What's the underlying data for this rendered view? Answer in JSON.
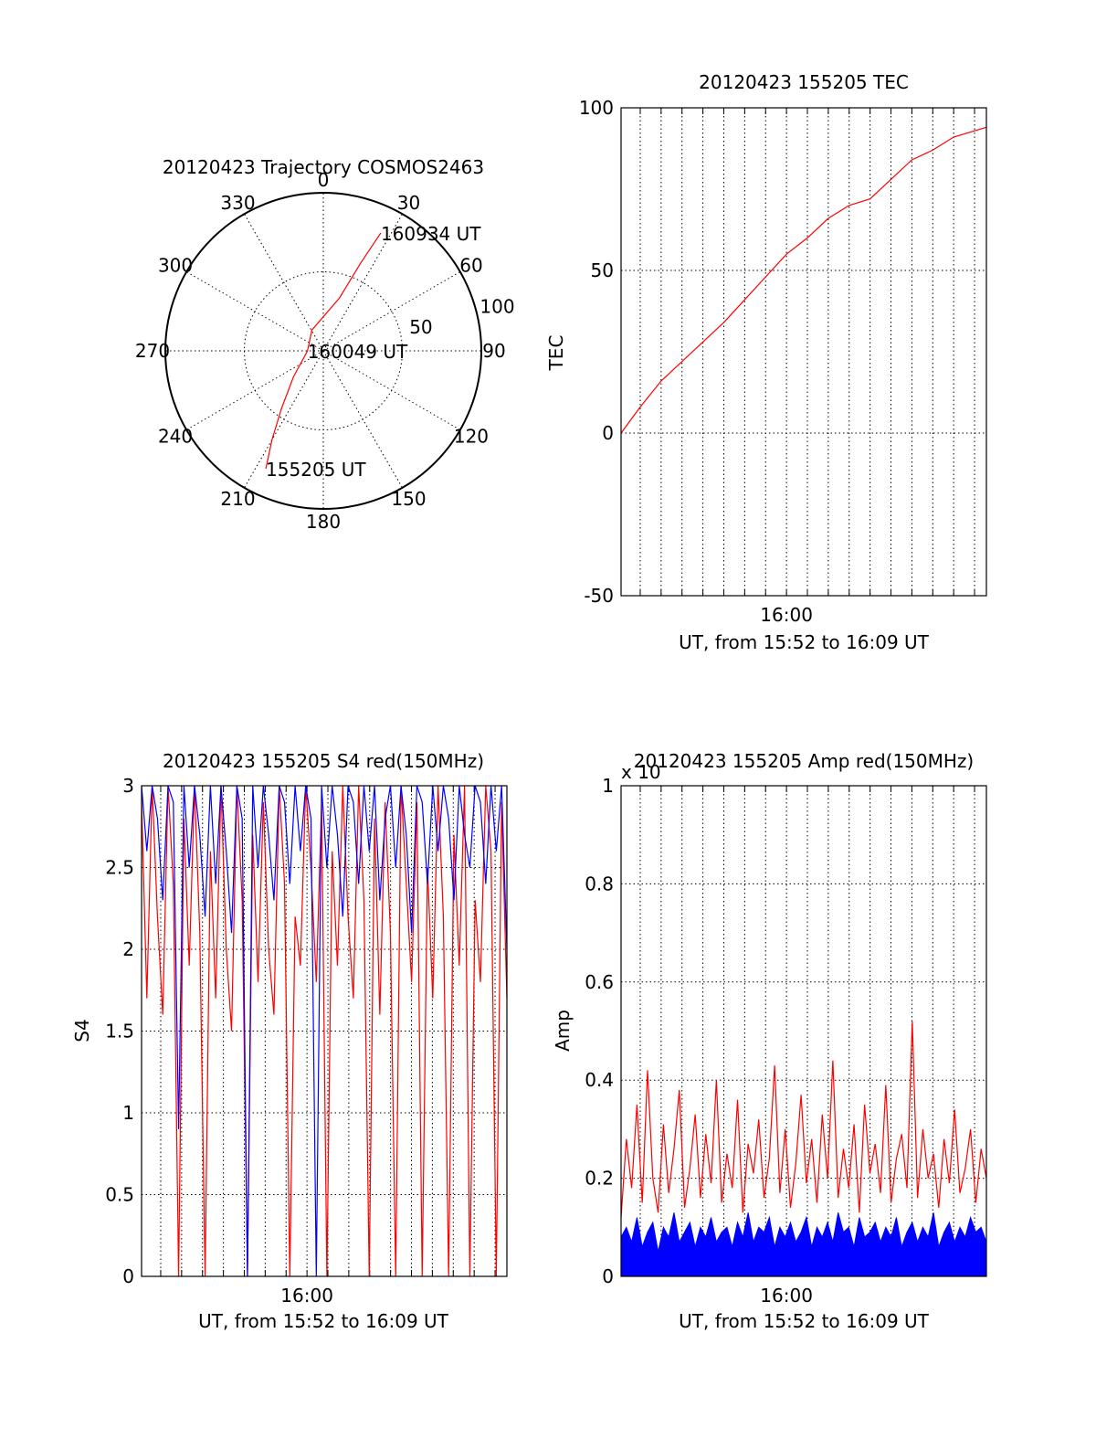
{
  "colors": {
    "red": "#ff0000",
    "blue": "#0000ff",
    "axis": "#000000"
  },
  "chart_data": [
    {
      "id": "trajectory",
      "type": "polar",
      "title": "20120423 Trajectory COSMOS2463",
      "angle_labels": [
        "0",
        "30",
        "60",
        "90",
        "120",
        "150",
        "180",
        "210",
        "240",
        "270",
        "300",
        "330"
      ],
      "radius_labels": [
        "50",
        "100"
      ],
      "radial_range": [
        0,
        100
      ],
      "angle_direction": "clockwise from top",
      "grid": true,
      "series": [
        {
          "color": "red",
          "points": [
            {
              "az": 206,
              "r": 83
            },
            {
              "az": 210,
              "r": 65
            },
            {
              "az": 216,
              "r": 45
            },
            {
              "az": 229,
              "r": 25
            },
            {
              "az": 270,
              "r": 10
            },
            {
              "az": 331,
              "r": 15
            },
            {
              "az": 17,
              "r": 35
            },
            {
              "az": 23,
              "r": 60
            },
            {
              "az": 26,
              "r": 83
            }
          ]
        }
      ],
      "annotations": [
        {
          "text": "160934 UT",
          "az": 26,
          "r": 83
        },
        {
          "text": "160049 UT",
          "az": 270,
          "r": 10
        },
        {
          "text": "155205 UT",
          "az": 206,
          "r": 83
        }
      ]
    },
    {
      "id": "tec",
      "type": "line",
      "title": "20120423 155205 TEC",
      "ylabel": "TEC",
      "xlabel": "UT, from 15:52 to 16:09 UT",
      "x_range": [
        "15:52:05",
        "16:09:34"
      ],
      "xtick_labels": [
        "16:00"
      ],
      "ylim": [
        -50,
        100
      ],
      "ytick_labels": [
        "-50",
        "0",
        "50",
        "100"
      ],
      "grid": true,
      "series": [
        {
          "color": "red",
          "x": [
            "15:52:05",
            "15:53:00",
            "15:54:00",
            "15:55:00",
            "15:56:00",
            "15:57:00",
            "15:58:00",
            "15:59:00",
            "16:00:00",
            "16:01:00",
            "16:02:00",
            "16:03:00",
            "16:04:00",
            "16:05:00",
            "16:06:00",
            "16:07:00",
            "16:08:00",
            "16:09:34"
          ],
          "values": [
            0,
            8,
            16,
            22,
            28,
            34,
            41,
            48,
            55,
            60,
            66,
            70,
            72,
            78,
            84,
            87,
            91,
            94
          ]
        }
      ]
    },
    {
      "id": "s4",
      "type": "line",
      "title": "20120423 155205 S4 red(150MHz)",
      "ylabel": "S4",
      "xlabel": "UT, from 15:52 to 16:09 UT",
      "x_range": [
        "15:52:05",
        "16:09:34"
      ],
      "xtick_labels": [
        "16:00"
      ],
      "ylim": [
        0,
        3
      ],
      "ytick_labels": [
        "0",
        "0.5",
        "1",
        "1.5",
        "2",
        "2.5",
        "3"
      ],
      "grid": true,
      "series": [
        {
          "color": "red",
          "values": [
            2.9,
            1.7,
            3.0,
            2.2,
            1.6,
            3.0,
            2.4,
            0,
            2.8,
            1.9,
            3.0,
            2.1,
            0,
            2.6,
            1.7,
            3.0,
            2.0,
            1.5,
            3.0,
            2.3,
            0,
            2.7,
            1.8,
            2.9,
            2.0,
            1.6,
            3.0,
            2.4,
            0,
            2.2,
            1.9,
            3.0,
            2.5,
            1.8,
            2.9,
            0,
            2.6,
            1.9,
            3.0,
            2.2,
            1.7,
            3.0,
            2.3,
            0,
            2.8,
            1.6,
            2.9,
            2.1,
            0,
            3.0,
            2.4,
            1.8,
            2.9,
            0,
            2.5,
            1.7,
            3.0,
            2.2,
            0,
            2.7,
            1.9,
            3.0,
            0,
            2.3,
            1.8,
            3.0,
            2.6,
            0,
            2.9,
            1.7
          ]
        },
        {
          "color": "blue",
          "values": [
            3.0,
            2.6,
            3.0,
            2.8,
            2.3,
            3.0,
            2.9,
            0.9,
            3.0,
            2.5,
            3.0,
            2.7,
            2.2,
            3.0,
            2.4,
            3.0,
            2.6,
            2.1,
            3.0,
            2.8,
            0,
            3.0,
            2.5,
            3.0,
            2.7,
            2.3,
            3.0,
            2.9,
            2.4,
            3.0,
            2.6,
            3.0,
            2.8,
            0,
            3.0,
            2.5,
            3.0,
            2.7,
            2.2,
            3.0,
            2.9,
            2.4,
            3.0,
            2.6,
            3.0,
            2.3,
            2.8,
            3.0,
            2.5,
            3.0,
            2.7,
            2.1,
            3.0,
            2.9,
            2.4,
            3.0,
            2.6,
            3.0,
            2.8,
            2.3,
            3.0,
            2.7,
            2.5,
            3.0,
            2.9,
            2.4,
            3.0,
            2.6,
            3.0,
            2.0
          ]
        }
      ]
    },
    {
      "id": "amp",
      "type": "line",
      "title": "20120423 155205 Amp red(150MHz)",
      "ylabel": "Amp",
      "xlabel": "UT, from 15:52 to 16:09 UT",
      "x_range": [
        "15:52:05",
        "16:09:34"
      ],
      "xtick_labels": [
        "16:00"
      ],
      "ylim": [
        0,
        1
      ],
      "ytick_labels": [
        "0",
        "0.2",
        "0.4",
        "0.6",
        "0.8",
        "1"
      ],
      "y_multiplier": "x 10",
      "grid": true,
      "series": [
        {
          "color": "red",
          "values": [
            0.12,
            0.28,
            0.18,
            0.35,
            0.15,
            0.42,
            0.2,
            0.13,
            0.31,
            0.17,
            0.26,
            0.38,
            0.14,
            0.22,
            0.33,
            0.16,
            0.29,
            0.19,
            0.4,
            0.15,
            0.25,
            0.18,
            0.36,
            0.13,
            0.27,
            0.21,
            0.32,
            0.16,
            0.24,
            0.43,
            0.17,
            0.3,
            0.14,
            0.23,
            0.37,
            0.19,
            0.28,
            0.15,
            0.33,
            0.2,
            0.44,
            0.16,
            0.26,
            0.18,
            0.31,
            0.13,
            0.35,
            0.21,
            0.27,
            0.17,
            0.39,
            0.15,
            0.24,
            0.29,
            0.18,
            0.52,
            0.16,
            0.3,
            0.2,
            0.25,
            0.14,
            0.28,
            0.19,
            0.34,
            0.17,
            0.22,
            0.3,
            0.15,
            0.26,
            0.2
          ]
        },
        {
          "color": "blue",
          "values": [
            0.08,
            0.1,
            0.07,
            0.12,
            0.06,
            0.09,
            0.11,
            0.05,
            0.1,
            0.08,
            0.13,
            0.07,
            0.09,
            0.11,
            0.06,
            0.1,
            0.08,
            0.12,
            0.07,
            0.09,
            0.1,
            0.06,
            0.11,
            0.08,
            0.13,
            0.07,
            0.1,
            0.09,
            0.12,
            0.06,
            0.1,
            0.08,
            0.11,
            0.07,
            0.09,
            0.12,
            0.06,
            0.1,
            0.08,
            0.11,
            0.07,
            0.13,
            0.09,
            0.1,
            0.06,
            0.12,
            0.08,
            0.09,
            0.11,
            0.07,
            0.1,
            0.08,
            0.12,
            0.06,
            0.09,
            0.11,
            0.07,
            0.1,
            0.08,
            0.13,
            0.06,
            0.09,
            0.11,
            0.07,
            0.1,
            0.08,
            0.12,
            0.09,
            0.1,
            0.07
          ]
        }
      ]
    }
  ]
}
